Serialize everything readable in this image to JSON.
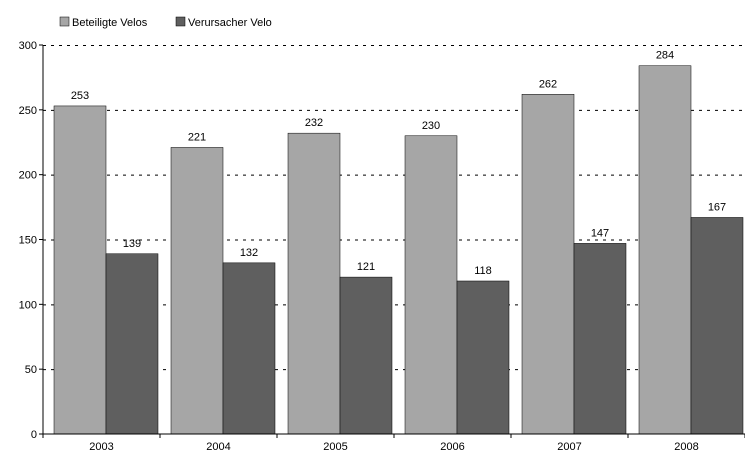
{
  "chart_data": {
    "type": "bar",
    "categories": [
      "2003",
      "2004",
      "2005",
      "2006",
      "2007",
      "2008"
    ],
    "series": [
      {
        "name": "Beteiligte Velos",
        "values": [
          253,
          221,
          232,
          230,
          262,
          284
        ],
        "color": "#a6a6a6"
      },
      {
        "name": "Verursacher Velo",
        "values": [
          139,
          132,
          121,
          118,
          147,
          167
        ],
        "color": "#5f5f5f"
      }
    ],
    "ylim": [
      0,
      300
    ],
    "yticks": [
      "0",
      "50",
      "100",
      "150",
      "200",
      "250",
      "300"
    ],
    "grid": "horizontal dashed",
    "legend": "top-left",
    "data_labels": true
  }
}
